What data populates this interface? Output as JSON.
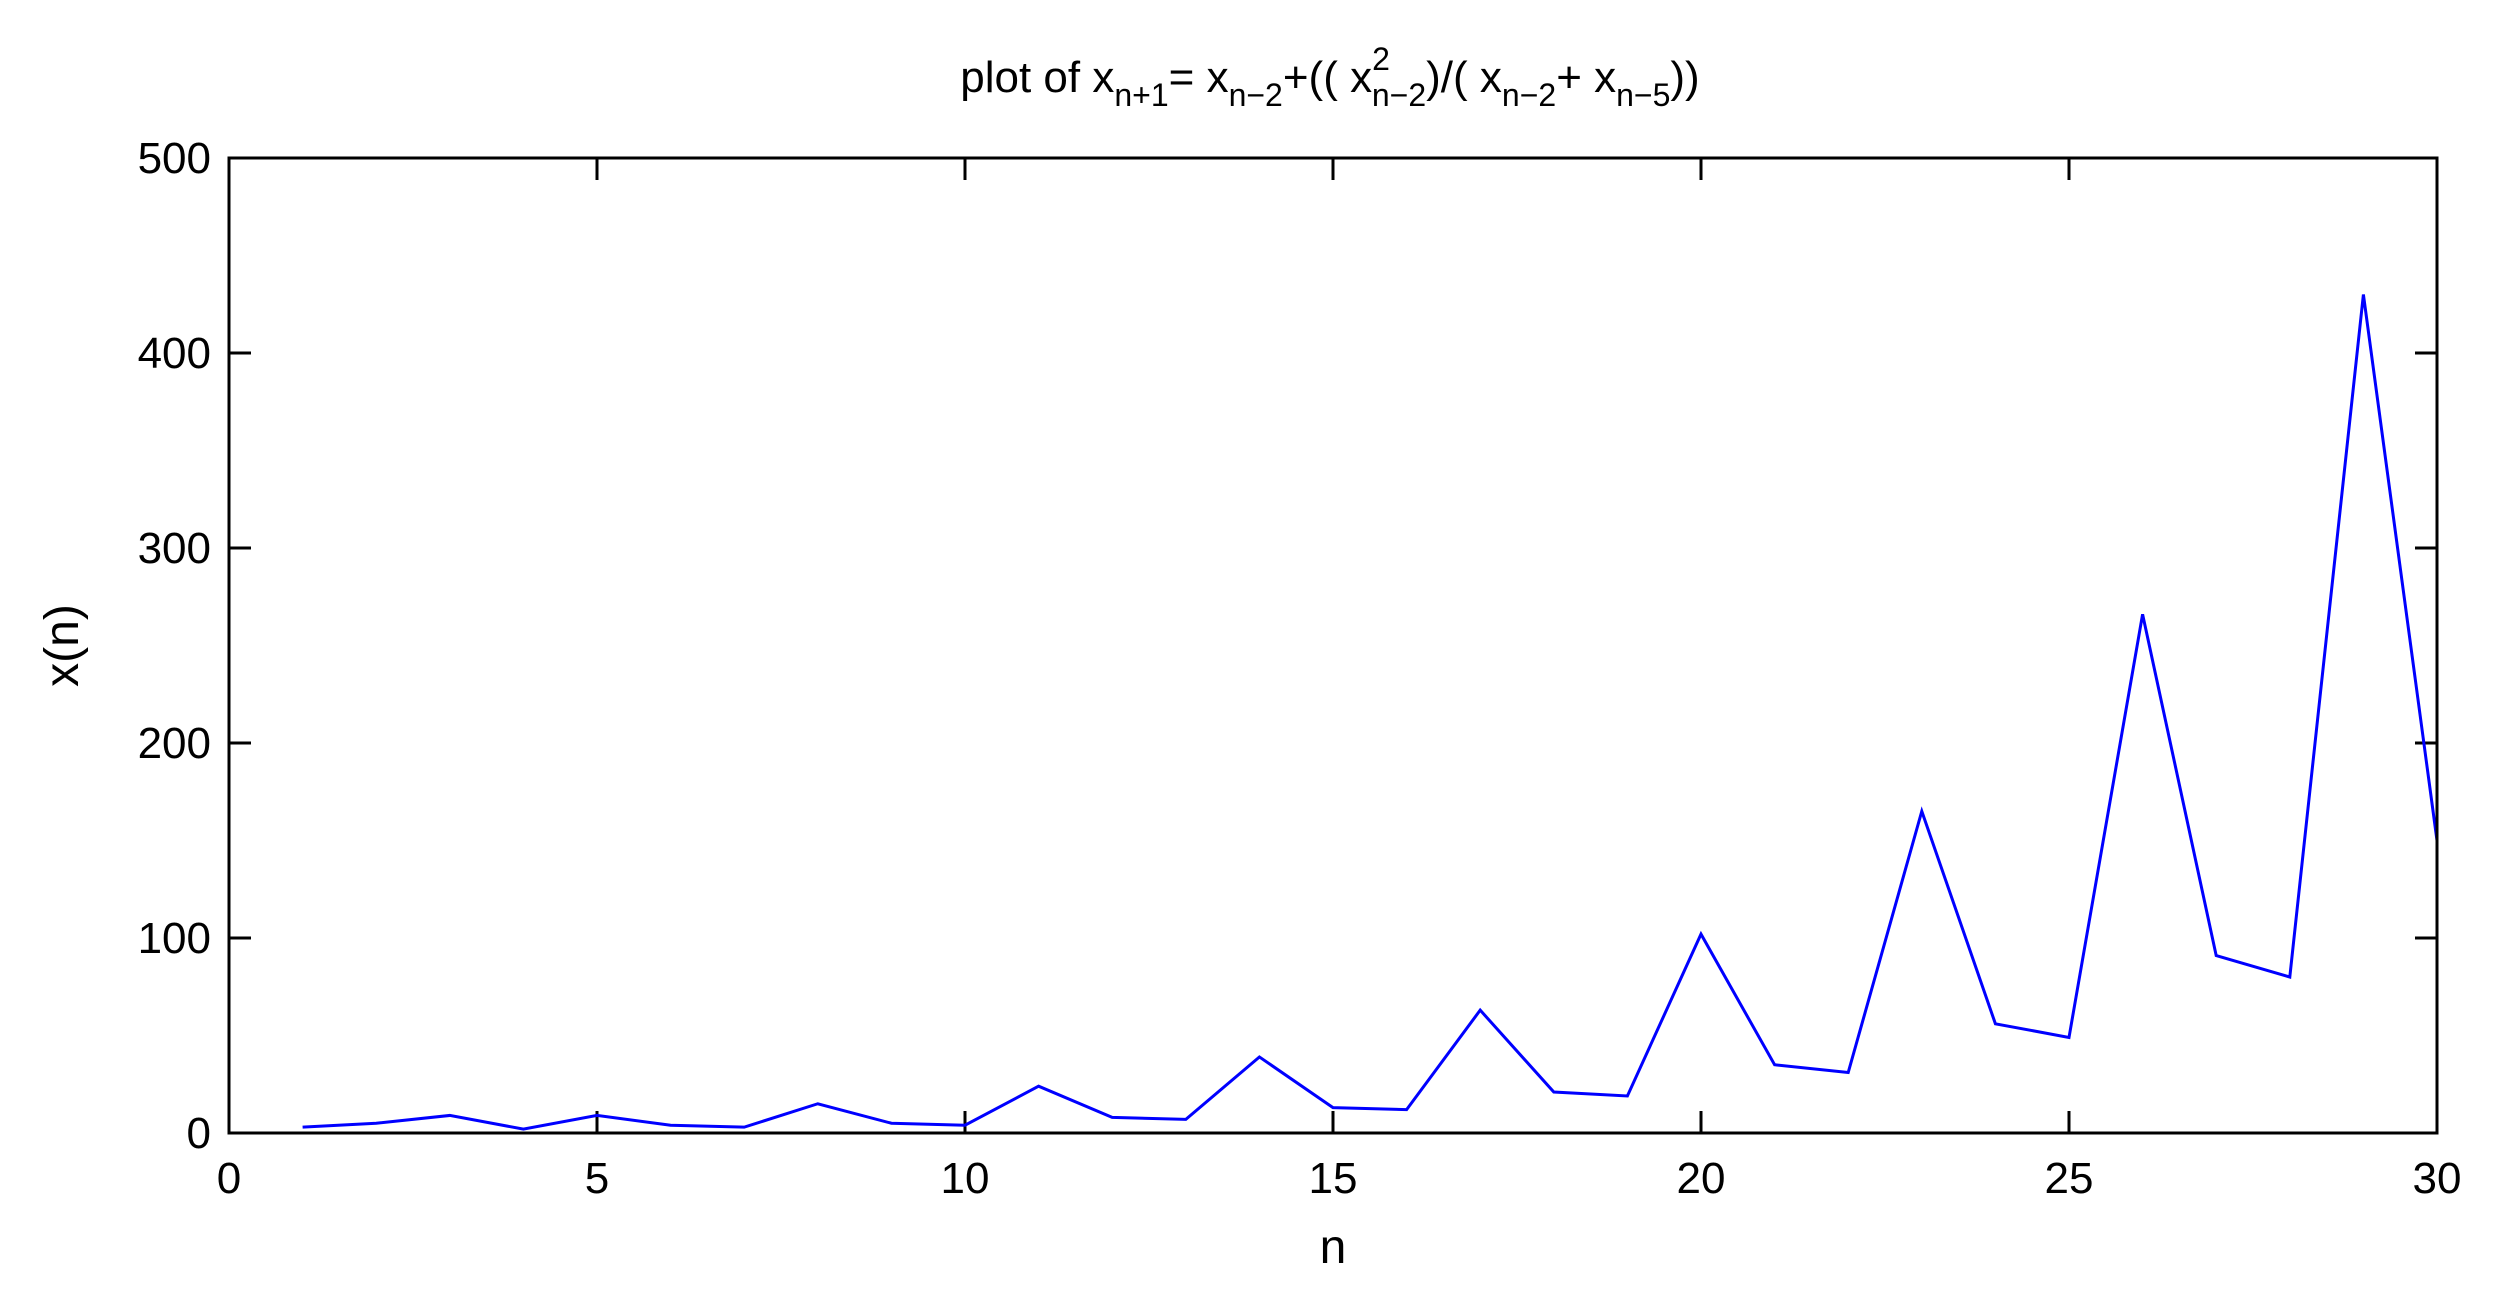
{
  "chart_data": {
    "type": "line",
    "title": {
      "prefix": "plot of ",
      "x": "x",
      "sub_n_plus_1": "n+1",
      "eq": "= ",
      "sub_n_minus_2": "n−2",
      "plus_open": "+(( ",
      "sup_2": "2",
      "slash_open": ")/( ",
      "plus": "+ ",
      "sub_n_minus_5": "n−5",
      "close": "))"
    },
    "xlabel": "n",
    "ylabel": "x(n)",
    "xlim": [
      0,
      30
    ],
    "ylim": [
      0,
      500
    ],
    "xticks": [
      0,
      5,
      10,
      15,
      20,
      25,
      30
    ],
    "yticks": [
      0,
      100,
      200,
      300,
      400,
      500
    ],
    "grid": false,
    "line_color": "#0000ff",
    "x": [
      1,
      2,
      3,
      4,
      5,
      6,
      7,
      8,
      9,
      10,
      11,
      12,
      13,
      14,
      15,
      16,
      17,
      18,
      19,
      20,
      21,
      22,
      23,
      24,
      25,
      26,
      27,
      28,
      29,
      30
    ],
    "values": [
      3,
      5,
      9,
      2,
      9,
      4,
      3,
      15,
      5,
      4,
      24,
      8,
      7,
      39,
      13,
      12,
      63,
      21,
      19,
      102,
      35,
      31,
      165,
      56,
      49,
      266,
      91,
      80,
      430,
      150
    ]
  }
}
